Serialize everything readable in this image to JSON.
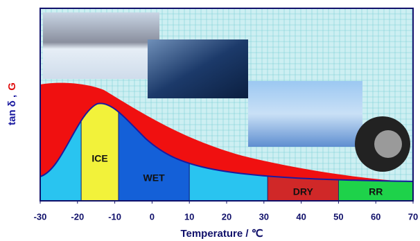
{
  "chart_data": {
    "type": "band-diagram",
    "x_label": "Temperature / ℃",
    "y_label_parts": [
      {
        "text": "tan δ ,",
        "color": "#1a1aa0"
      },
      {
        "text": "G",
        "color": "#e01010"
      }
    ],
    "xlim": [
      -30,
      70
    ],
    "xticks": [
      -30,
      -20,
      -10,
      0,
      10,
      20,
      30,
      40,
      50,
      60,
      70
    ],
    "grid": true,
    "regions": [
      {
        "from": -30,
        "to": -19,
        "color": "#29c4f0"
      },
      {
        "label": "ICE",
        "from": -19,
        "to": -9,
        "color": "#f2f23a"
      },
      {
        "label": "WET",
        "from": -9,
        "to": 10,
        "color": "#1460d8"
      },
      {
        "from": 10,
        "to": 31,
        "color": "#29c4f0"
      },
      {
        "label": "DRY",
        "from": 31,
        "to": 50,
        "color": "#d02828"
      },
      {
        "label": "RR",
        "from": 50,
        "to": 70,
        "color": "#1ed24a"
      }
    ]
  }
}
